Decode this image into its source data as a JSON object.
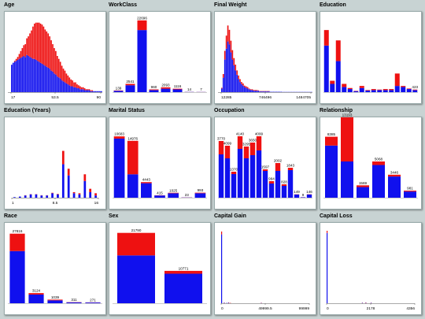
{
  "colors": {
    "a": "#1010ee",
    "b": "#ee1111"
  },
  "chart_data": [
    {
      "type": "bar",
      "title": "Age",
      "style": "dense",
      "xticks": [
        "17",
        "53.5",
        "90"
      ],
      "a": [
        28,
        30,
        31,
        32,
        33,
        34,
        35,
        36,
        37,
        36,
        38,
        37,
        36,
        35,
        34,
        34,
        33,
        32,
        31,
        30,
        29,
        28,
        27,
        26,
        25,
        24,
        22,
        21,
        19,
        18,
        16,
        15,
        14,
        12,
        11,
        10,
        9,
        8,
        7,
        6,
        6,
        5,
        5,
        4,
        4,
        3,
        3,
        3,
        2,
        2,
        2,
        2,
        1,
        1,
        1,
        1,
        1,
        1,
        1,
        1
      ],
      "b": [
        0,
        0,
        1,
        2,
        3,
        5,
        7,
        9,
        11,
        13,
        17,
        20,
        24,
        28,
        33,
        36,
        38,
        39,
        40,
        40,
        40,
        39,
        37,
        36,
        35,
        33,
        31,
        28,
        26,
        24,
        21,
        19,
        17,
        15,
        13,
        12,
        10,
        9,
        8,
        7,
        6,
        5,
        5,
        4,
        3,
        3,
        2,
        2,
        2,
        1,
        1,
        1,
        1,
        1,
        0,
        0,
        0,
        0,
        0,
        0
      ],
      "max": 74
    },
    {
      "type": "bar",
      "title": "WorkClass",
      "style": "labeled",
      "values": [
        "139",
        "2541",
        "22696",
        "960",
        "2093",
        "1116",
        "14",
        "7"
      ],
      "a": [
        2,
        10,
        90,
        3,
        5,
        4,
        0.3,
        0.2
      ],
      "b": [
        0.5,
        2,
        14,
        1,
        2,
        1,
        0.1,
        0.1
      ],
      "max": 105
    },
    {
      "type": "bar",
      "title": "Final Weight",
      "style": "dense",
      "xticks": [
        "12285",
        "746496",
        "1484705"
      ],
      "a": [
        5,
        20,
        45,
        60,
        70,
        66,
        55,
        45,
        37,
        30,
        24,
        18,
        14,
        11,
        9,
        7,
        6,
        5,
        4,
        3,
        3,
        2,
        2,
        2,
        2,
        1,
        1,
        1,
        1,
        1,
        1,
        1,
        0.5,
        0.5,
        0.5,
        0.5,
        0.5,
        0.5,
        0.5,
        0.5,
        0.3,
        0.3,
        0.3,
        0.3,
        0.3,
        0.3,
        0.3,
        0.3,
        0.3,
        0.3,
        0.3,
        0.3,
        0.3,
        0.3,
        0.3,
        0.3,
        0.3,
        0.3,
        0.3,
        0.3
      ],
      "b": [
        1,
        5,
        12,
        18,
        22,
        20,
        16,
        13,
        10,
        8,
        6,
        5,
        4,
        3,
        3,
        2,
        2,
        2,
        1,
        1,
        1,
        1,
        1,
        1,
        0.5,
        0.5,
        0.5,
        0.5,
        0.5,
        0.5,
        0.5,
        0.5,
        0,
        0,
        0,
        0,
        0,
        0,
        0,
        0,
        0,
        0,
        0,
        0,
        0,
        0,
        0,
        0,
        0,
        0,
        0,
        0,
        0,
        0,
        0,
        0,
        0,
        0,
        0,
        0
      ],
      "max": 100
    },
    {
      "type": "bar",
      "title": "Education",
      "style": "labeled",
      "values": [
        "",
        "",
        "",
        "",
        "",
        "",
        "",
        "",
        "",
        "",
        "",
        "",
        "",
        "",
        "",
        "423"
      ],
      "a": [
        45,
        8,
        30,
        5,
        3,
        1,
        4,
        1.5,
        2,
        2,
        2,
        2,
        6,
        5,
        3,
        2
      ],
      "b": [
        15,
        3,
        20,
        3,
        1,
        0.3,
        2,
        0.5,
        1,
        0.5,
        1,
        1,
        12,
        1,
        0.5,
        0.5
      ],
      "max": 70
    },
    {
      "type": "bar",
      "title": "Education (Years)",
      "style": "thin",
      "xticks": [
        "1",
        "8.5",
        "16"
      ],
      "a": [
        0.5,
        1,
        2,
        3,
        3,
        2,
        2,
        4,
        3,
        30,
        20,
        4,
        3,
        15,
        5,
        2
      ],
      "b": [
        0,
        0,
        0.2,
        0.2,
        0.2,
        0.2,
        0.2,
        0.4,
        0.4,
        12,
        6,
        1,
        1,
        6,
        3,
        2
      ],
      "max": 65
    },
    {
      "type": "bar",
      "title": "Marital Status",
      "style": "labeled",
      "values": [
        "10683",
        "14976",
        "4443",
        "415",
        "1025",
        "23",
        "993"
      ],
      "a": [
        53,
        21,
        13,
        2,
        4,
        0.2,
        4
      ],
      "b": [
        2,
        30,
        1,
        0.2,
        0.4,
        0.1,
        0.5
      ],
      "max": 65
    },
    {
      "type": "bar",
      "title": "Occupation",
      "style": "labeled",
      "values": [
        "3770",
        "4099",
        "1370",
        "4140",
        "3295",
        "3650",
        "4099",
        "1597",
        "994",
        "2002",
        "828",
        "1843",
        "149",
        "9",
        "146"
      ],
      "a": [
        55,
        50,
        30,
        62,
        50,
        54,
        60,
        34,
        18,
        34,
        15,
        35,
        4,
        0.5,
        4
      ],
      "b": [
        17,
        16,
        3,
        16,
        15,
        16,
        18,
        2,
        3,
        10,
        2,
        3,
        0.3,
        0.1,
        0.3
      ],
      "max": 92
    },
    {
      "type": "bar",
      "title": "Relationship",
      "style": "labeled",
      "values": [
        "8385",
        "13193",
        "1569",
        "5068",
        "3446",
        "981"
      ],
      "a": [
        59,
        41,
        12,
        37,
        24,
        7
      ],
      "b": [
        10,
        50,
        2,
        4,
        2,
        1
      ],
      "max": 82
    },
    {
      "type": "bar",
      "title": "Race",
      "style": "labeled",
      "values": [
        "27816",
        "3124",
        "1039",
        "311",
        "271"
      ],
      "a": [
        72,
        12,
        4,
        1.2,
        1
      ],
      "b": [
        24,
        2,
        1,
        0.3,
        0.2
      ],
      "max": 100
    },
    {
      "type": "bar",
      "title": "Sex",
      "style": "labeled",
      "values": [
        "21790",
        "10771"
      ],
      "a": [
        68,
        42
      ],
      "b": [
        32,
        4
      ],
      "max": 103
    },
    {
      "type": "bar",
      "title": "Capital Gain",
      "style": "spike",
      "xticks": [
        "0",
        "49999.5",
        "99999"
      ],
      "a": [
        95,
        0.6,
        0.6,
        0.6,
        0,
        0.4
      ],
      "b": [
        4,
        0.4,
        0,
        0.6,
        0.5,
        0.4
      ],
      "pos": [
        0,
        3,
        6,
        8,
        10,
        45
      ],
      "max": 100
    },
    {
      "type": "bar",
      "title": "Capital Loss",
      "style": "spike",
      "xticks": [
        "0",
        "2178",
        "4356"
      ],
      "a": [
        97,
        0.5,
        0.5,
        0.5
      ],
      "b": [
        3,
        0.3,
        0.6,
        0.3
      ],
      "pos": [
        0,
        40,
        44,
        50
      ],
      "max": 100
    }
  ]
}
